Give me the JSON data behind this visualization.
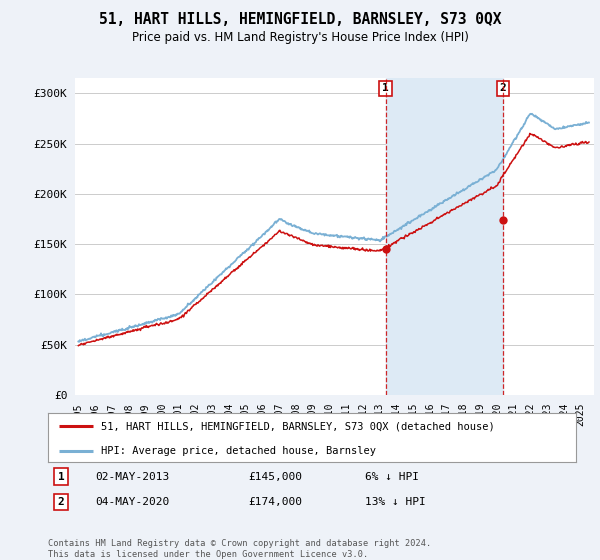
{
  "title": "51, HART HILLS, HEMINGFIELD, BARNSLEY, S73 0QX",
  "subtitle": "Price paid vs. HM Land Registry's House Price Index (HPI)",
  "ylabel_ticks": [
    "£0",
    "£50K",
    "£100K",
    "£150K",
    "£200K",
    "£250K",
    "£300K"
  ],
  "ytick_values": [
    0,
    50000,
    100000,
    150000,
    200000,
    250000,
    300000
  ],
  "ylim": [
    0,
    315000
  ],
  "xlim_start": 1994.8,
  "xlim_end": 2025.8,
  "background_color": "#eef2f8",
  "plot_bg_color": "#ffffff",
  "hpi_color": "#7ab0d4",
  "hpi_fill_color": "#ddeaf5",
  "property_color": "#cc1111",
  "grid_color": "#cccccc",
  "transaction1_x": 2013.35,
  "transaction1_y": 145000,
  "transaction2_x": 2020.35,
  "transaction2_y": 174000,
  "legend_label1": "51, HART HILLS, HEMINGFIELD, BARNSLEY, S73 0QX (detached house)",
  "legend_label2": "HPI: Average price, detached house, Barnsley",
  "note1_date": "02-MAY-2013",
  "note1_price": "£145,000",
  "note1_hpi": "6% ↓ HPI",
  "note2_date": "04-MAY-2020",
  "note2_price": "£174,000",
  "note2_hpi": "13% ↓ HPI",
  "footer": "Contains HM Land Registry data © Crown copyright and database right 2024.\nThis data is licensed under the Open Government Licence v3.0.",
  "xtick_years": [
    1995,
    1996,
    1997,
    1998,
    1999,
    2000,
    2001,
    2002,
    2003,
    2004,
    2005,
    2006,
    2007,
    2008,
    2009,
    2010,
    2011,
    2012,
    2013,
    2014,
    2015,
    2016,
    2017,
    2018,
    2019,
    2020,
    2021,
    2022,
    2023,
    2024,
    2025
  ]
}
